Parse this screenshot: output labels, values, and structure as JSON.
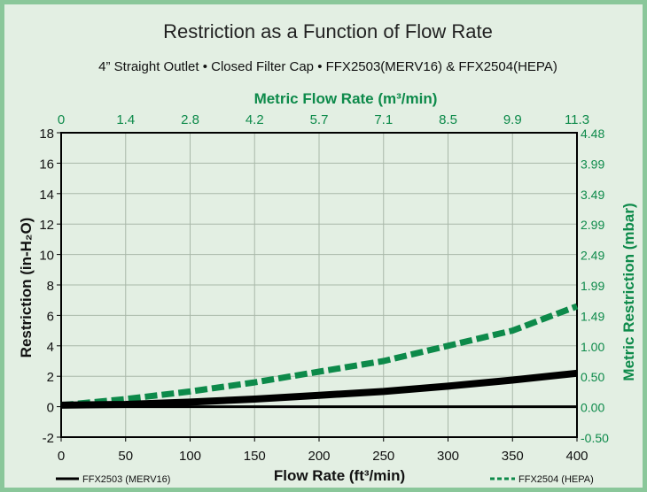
{
  "chart_data": {
    "type": "line",
    "title": "Restriction as a Function of Flow Rate",
    "subtitle": "4” Straight Outlet • Closed Filter Cap • FFX2503(MERV16) & FFX2504(HEPA)",
    "xlabel": "Flow Rate (ft³/min)",
    "ylabel": "Restriction (in-H₂O)",
    "x2label": "Metric Flow Rate (m³/min)",
    "y2label": "Metric Restriction (mbar)",
    "xlim": [
      0,
      400
    ],
    "ylim": [
      -2,
      18
    ],
    "xticks": [
      "0",
      "50",
      "100",
      "150",
      "200",
      "250",
      "300",
      "350",
      "400"
    ],
    "yticks": [
      "-2",
      "0",
      "2",
      "4",
      "6",
      "8",
      "10",
      "12",
      "14",
      "16",
      "18"
    ],
    "x2ticks": [
      "0",
      "1.4",
      "2.8",
      "4.2",
      "5.7",
      "7.1",
      "8.5",
      "9.9",
      "11.3"
    ],
    "y2ticks": [
      "-0.50",
      "0.00",
      "0.50",
      "1.00",
      "1.49",
      "1.99",
      "2.49",
      "2.99",
      "3.49",
      "3.99",
      "4.48"
    ],
    "grid": true,
    "legend_placement": "bottom",
    "series": [
      {
        "name": "FFX2503 (MERV16)",
        "color": "#000000",
        "style": "solid",
        "x": [
          0,
          50,
          100,
          150,
          200,
          250,
          300,
          350,
          400
        ],
        "values": [
          0.1,
          0.15,
          0.3,
          0.5,
          0.75,
          1.0,
          1.35,
          1.75,
          2.2
        ]
      },
      {
        "name": "FFX2504 (HEPA)",
        "color": "#0d8a4a",
        "style": "dashed",
        "x": [
          0,
          50,
          100,
          150,
          200,
          250,
          300,
          340,
          350,
          375,
          400
        ],
        "values": [
          0.1,
          0.5,
          1.0,
          1.6,
          2.3,
          3.0,
          4.0,
          4.8,
          5.0,
          5.8,
          6.6
        ]
      }
    ]
  }
}
